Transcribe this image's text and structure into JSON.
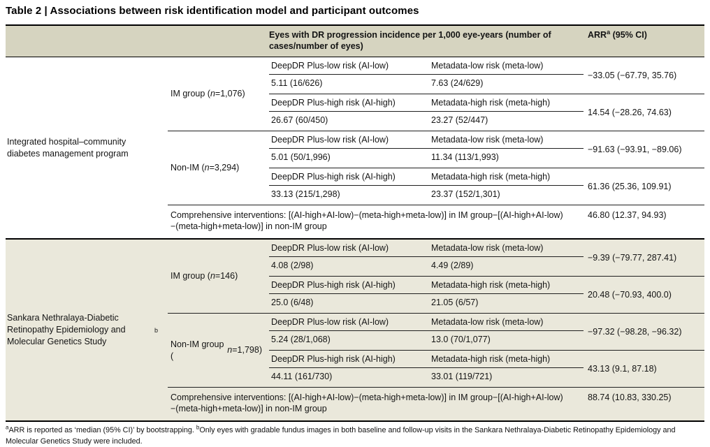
{
  "title": "Table 2 | Associations between risk identification model and participant outcomes",
  "header": {
    "incidence_label": "Eyes with DR progression incidence per 1,000 eye-years (number of cases/number of eyes)",
    "arr_label_html": "ARR<sup>a</sup> (95% CI)"
  },
  "colors": {
    "header_band": "#d6d4c0",
    "section2_band": "#eae8db",
    "rule_dark": "#000000",
    "rule_light": "#1f1f1f"
  },
  "sections": [
    {
      "program_html": "Integrated hospital–community diabetes management program",
      "groups": [
        {
          "label_html": "IM group (<i>n</i>=1,076)",
          "blocks": [
            {
              "labels": [
                "DeepDR Plus-low risk (AI-low)",
                "Metadata-low risk (meta-low)"
              ],
              "values": [
                "5.11 (16/626)",
                "7.63 (24/629)"
              ],
              "arr": "−33.05 (−67.79, 35.76)"
            },
            {
              "labels": [
                "DeepDR Plus-high risk (AI-high)",
                "Metadata-high risk (meta-high)"
              ],
              "values": [
                "26.67 (60/450)",
                "23.27 (52/447)"
              ],
              "arr": "14.54 (−28.26, 74.63)"
            }
          ]
        },
        {
          "label_html": "Non-IM (<i>n</i>=3,294)",
          "blocks": [
            {
              "labels": [
                "DeepDR Plus-low risk (AI-low)",
                "Metadata-low risk (meta-low)"
              ],
              "values": [
                "5.01 (50/1,996)",
                "11.34 (113/1,993)"
              ],
              "arr": "−91.63 (−93.91, −89.06)"
            },
            {
              "labels": [
                "DeepDR Plus-high risk (AI-high)",
                "Metadata-high risk (meta-high)"
              ],
              "values": [
                "33.13 (215/1,298)",
                "23.37 (152/1,301)"
              ],
              "arr": "61.36 (25.36, 109.91)"
            }
          ]
        }
      ],
      "comprehensive": {
        "text": "Comprehensive interventions: [(AI-high+AI-low)−(meta-high+meta-low)] in IM group−[(AI-high+AI-low)−(meta-high+meta-low)] in non-IM group",
        "arr": "46.80 (12.37, 94.93)"
      }
    },
    {
      "program_html": "Sankara Nethralaya-Diabetic Retinopathy Epidemiology and Molecular Genetics Study<sup>b</sup>",
      "groups": [
        {
          "label_html": "IM group (<i>n</i>=146)",
          "blocks": [
            {
              "labels": [
                "DeepDR Plus-low risk (AI-low)",
                "Metadata-low risk (meta-low)"
              ],
              "values": [
                "4.08 (2/98)",
                "4.49 (2/89)"
              ],
              "arr": "−9.39 (−79.77, 287.41)"
            },
            {
              "labels": [
                "DeepDR Plus-high risk (AI-high)",
                "Metadata-high risk (meta-high)"
              ],
              "values": [
                "25.0 (6/48)",
                "21.05 (6/57)"
              ],
              "arr": "20.48 (−70.93, 400.0)"
            }
          ]
        },
        {
          "label_html": "Non-IM group (<i>n</i>=1,798)",
          "blocks": [
            {
              "labels": [
                "DeepDR Plus-low risk (AI-low)",
                "Metadata-low risk (meta-low)"
              ],
              "values": [
                "5.24 (28/1,068)",
                "13.0 (70/1,077)"
              ],
              "arr": "−97.32 (−98.28, −96.32)"
            },
            {
              "labels": [
                "DeepDR Plus-high risk (AI-high)",
                "Metadata-high risk (meta-high)"
              ],
              "values": [
                "44.11 (161/730)",
                "33.01 (119/721)"
              ],
              "arr": "43.13 (9.1, 87.18)"
            }
          ]
        }
      ],
      "comprehensive": {
        "text": "Comprehensive interventions: [(AI-high+AI-low)−(meta-high+meta-low)] in IM group−[(AI-high+AI-low)−(meta-high+meta-low)] in non-IM group",
        "arr": "88.74 (10.83, 330.25)"
      }
    }
  ],
  "footnote_html": "<sup>a</sup>ARR is reported as ‘median (95% CI)’ by bootstrapping. <sup>b</sup>Only eyes with gradable fundus images in both baseline and follow-up visits in the Sankara Nethralaya-Diabetic Retinopathy Epidemiology and Molecular Genetics Study were included."
}
